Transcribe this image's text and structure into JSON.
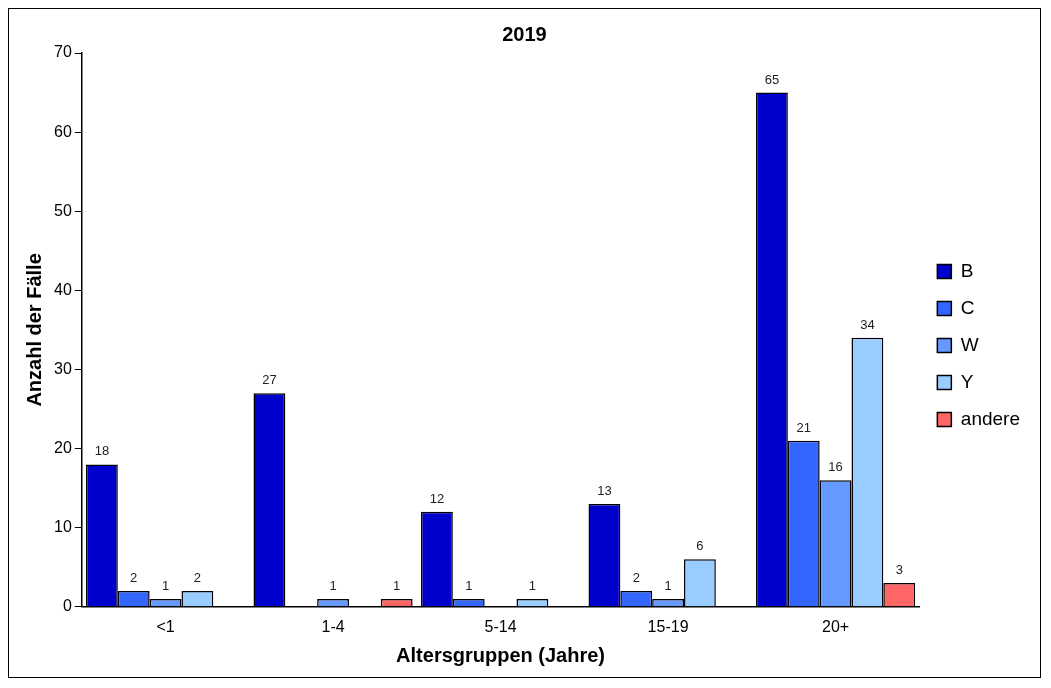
{
  "chart_data": {
    "type": "bar",
    "title": "2019",
    "xlabel": "Altersgruppen (Jahre)",
    "ylabel": "Anzahl der Fälle",
    "categories": [
      "<1",
      "1-4",
      "5-14",
      "15-19",
      "20+"
    ],
    "series": [
      {
        "name": "B",
        "color": "#0000cc",
        "values": [
          18,
          27,
          12,
          13,
          65
        ]
      },
      {
        "name": "C",
        "color": "#3366ff",
        "values": [
          2,
          null,
          1,
          2,
          21
        ]
      },
      {
        "name": "W",
        "color": "#6699ff",
        "values": [
          1,
          1,
          null,
          1,
          16
        ]
      },
      {
        "name": "Y",
        "color": "#99ccff",
        "values": [
          2,
          null,
          1,
          6,
          34
        ]
      },
      {
        "name": "andere",
        "color": "#ff6666",
        "values": [
          null,
          1,
          null,
          null,
          3
        ]
      }
    ],
    "ylim": [
      0,
      70
    ],
    "yticks": [
      0,
      10,
      20,
      30,
      40,
      50,
      60,
      70
    ],
    "grid": false,
    "legend": "right",
    "data_labels": true
  }
}
